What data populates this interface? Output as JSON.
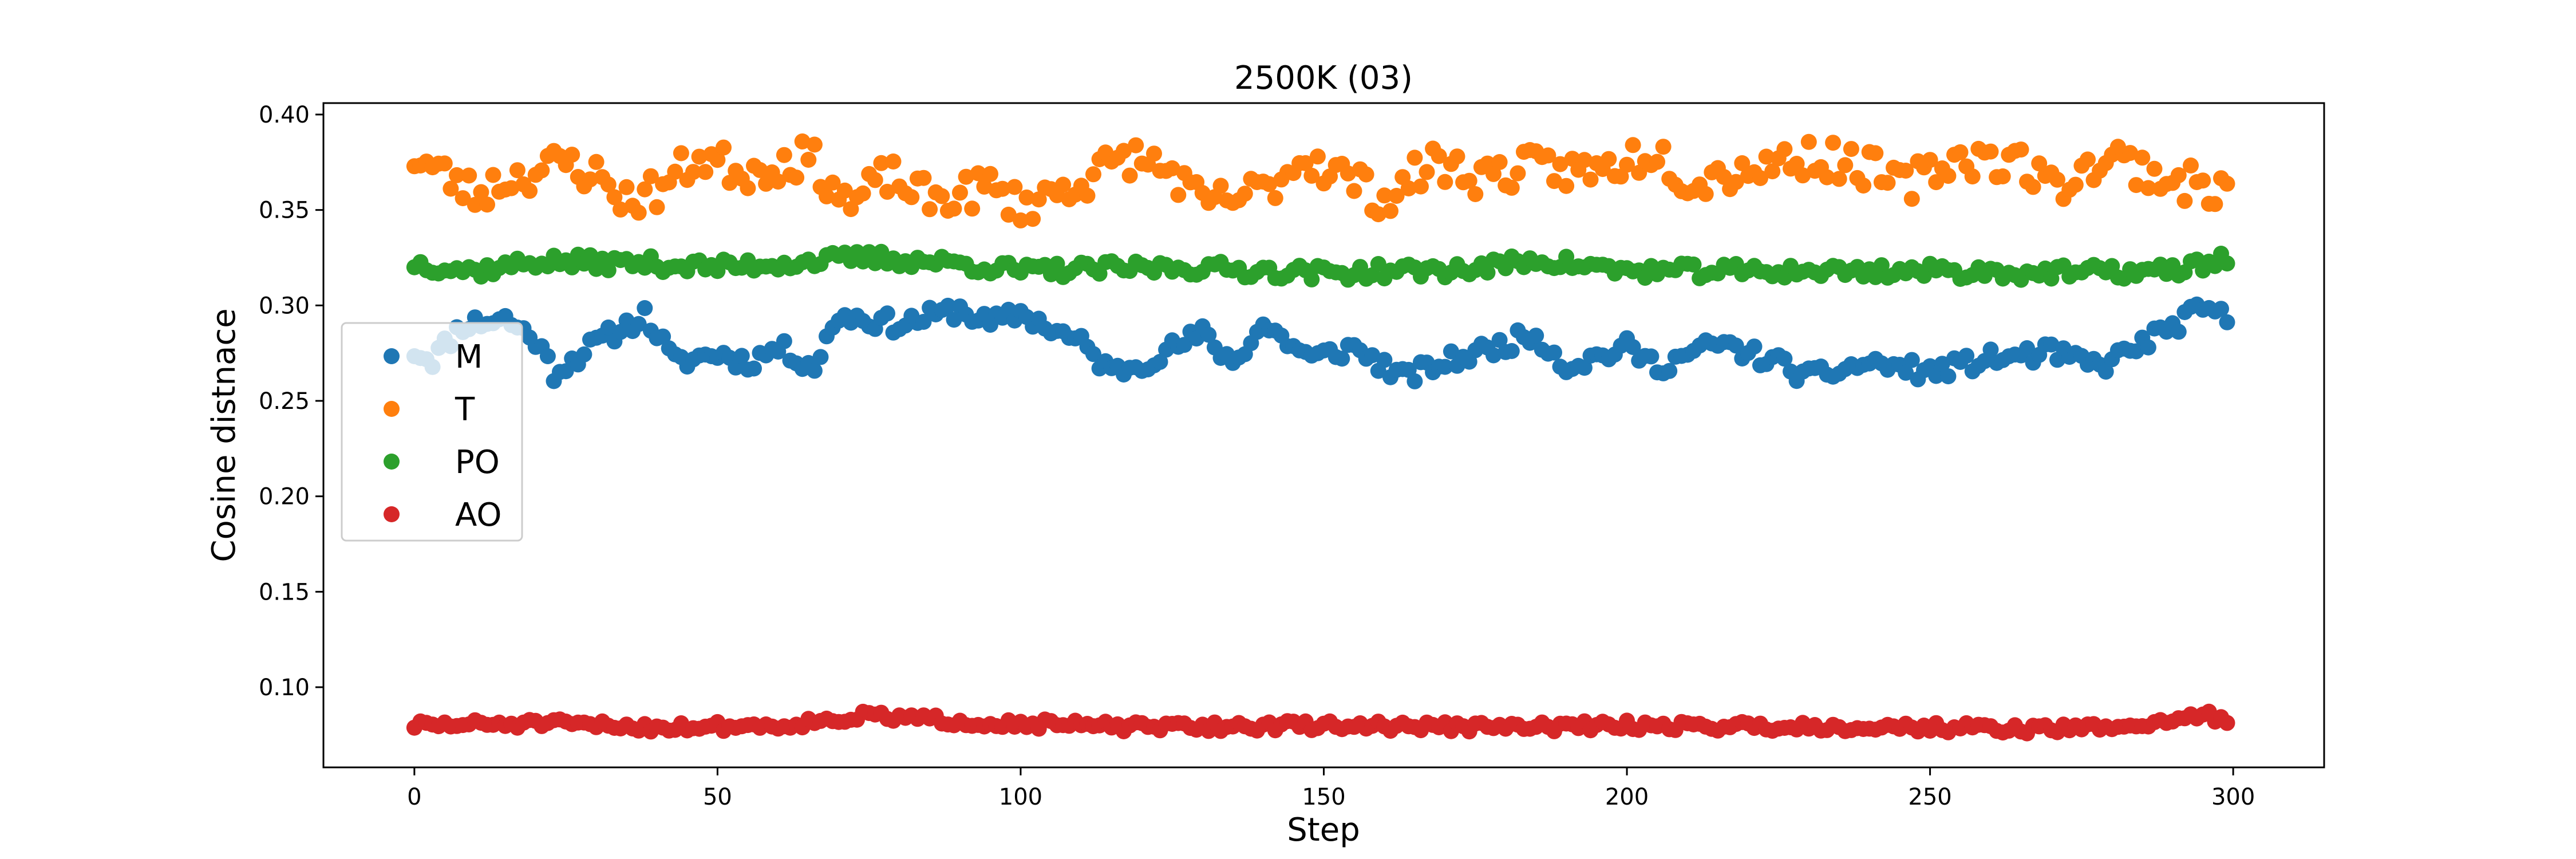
{
  "chart_data": {
    "type": "scatter",
    "title": "2500K (03)",
    "xlabel": "Step",
    "ylabel": "Cosine distnace",
    "xlim": [
      -15,
      315
    ],
    "ylim": [
      0.058,
      0.406
    ],
    "xticks": [
      0,
      50,
      100,
      150,
      200,
      250,
      300
    ],
    "yticks": [
      0.1,
      0.15,
      0.2,
      0.25,
      0.3,
      0.35,
      0.4
    ],
    "grid": false,
    "legend_position": "center-left",
    "x_range": [
      0,
      299
    ],
    "series": [
      {
        "name": "M",
        "color": "#1f77b4",
        "anchors": [
          [
            0,
            0.276
          ],
          [
            3,
            0.272
          ],
          [
            8,
            0.29
          ],
          [
            15,
            0.293
          ],
          [
            20,
            0.282
          ],
          [
            23,
            0.265
          ],
          [
            30,
            0.28
          ],
          [
            38,
            0.295
          ],
          [
            43,
            0.27
          ],
          [
            50,
            0.275
          ],
          [
            55,
            0.27
          ],
          [
            60,
            0.278
          ],
          [
            66,
            0.268
          ],
          [
            70,
            0.295
          ],
          [
            80,
            0.29
          ],
          [
            90,
            0.298
          ],
          [
            95,
            0.29
          ],
          [
            100,
            0.296
          ],
          [
            110,
            0.28
          ],
          [
            115,
            0.265
          ],
          [
            120,
            0.27
          ],
          [
            130,
            0.285
          ],
          [
            135,
            0.27
          ],
          [
            140,
            0.29
          ],
          [
            148,
            0.272
          ],
          [
            155,
            0.278
          ],
          [
            163,
            0.262
          ],
          [
            170,
            0.27
          ],
          [
            180,
            0.28
          ],
          [
            185,
            0.285
          ],
          [
            190,
            0.268
          ],
          [
            200,
            0.278
          ],
          [
            205,
            0.268
          ],
          [
            215,
            0.28
          ],
          [
            225,
            0.27
          ],
          [
            230,
            0.262
          ],
          [
            240,
            0.27
          ],
          [
            250,
            0.265
          ],
          [
            260,
            0.272
          ],
          [
            270,
            0.275
          ],
          [
            278,
            0.268
          ],
          [
            285,
            0.28
          ],
          [
            295,
            0.298
          ],
          [
            299,
            0.293
          ]
        ],
        "noise": 0.005,
        "seed": 11
      },
      {
        "name": "T",
        "color": "#ff7f0e",
        "anchors": [
          [
            0,
            0.378
          ],
          [
            5,
            0.368
          ],
          [
            10,
            0.358
          ],
          [
            15,
            0.366
          ],
          [
            20,
            0.37
          ],
          [
            25,
            0.375
          ],
          [
            30,
            0.368
          ],
          [
            35,
            0.355
          ],
          [
            40,
            0.36
          ],
          [
            47,
            0.378
          ],
          [
            55,
            0.37
          ],
          [
            65,
            0.378
          ],
          [
            72,
            0.352
          ],
          [
            78,
            0.368
          ],
          [
            85,
            0.355
          ],
          [
            95,
            0.362
          ],
          [
            100,
            0.352
          ],
          [
            110,
            0.365
          ],
          [
            118,
            0.378
          ],
          [
            125,
            0.37
          ],
          [
            130,
            0.352
          ],
          [
            140,
            0.36
          ],
          [
            147,
            0.378
          ],
          [
            155,
            0.365
          ],
          [
            160,
            0.355
          ],
          [
            168,
            0.375
          ],
          [
            175,
            0.368
          ],
          [
            185,
            0.372
          ],
          [
            195,
            0.37
          ],
          [
            205,
            0.382
          ],
          [
            210,
            0.365
          ],
          [
            220,
            0.372
          ],
          [
            230,
            0.378
          ],
          [
            240,
            0.372
          ],
          [
            245,
            0.362
          ],
          [
            255,
            0.378
          ],
          [
            265,
            0.375
          ],
          [
            270,
            0.362
          ],
          [
            280,
            0.378
          ],
          [
            290,
            0.365
          ],
          [
            299,
            0.36
          ]
        ],
        "noise": 0.01,
        "seed": 23
      },
      {
        "name": "PO",
        "color": "#2ca02c",
        "anchors": [
          [
            0,
            0.322
          ],
          [
            10,
            0.318
          ],
          [
            20,
            0.323
          ],
          [
            38,
            0.322
          ],
          [
            50,
            0.32
          ],
          [
            75,
            0.325
          ],
          [
            90,
            0.322
          ],
          [
            100,
            0.318
          ],
          [
            125,
            0.32
          ],
          [
            150,
            0.317
          ],
          [
            175,
            0.319
          ],
          [
            185,
            0.324
          ],
          [
            200,
            0.318
          ],
          [
            225,
            0.318
          ],
          [
            250,
            0.318
          ],
          [
            270,
            0.317
          ],
          [
            290,
            0.318
          ],
          [
            299,
            0.325
          ]
        ],
        "noise": 0.004,
        "seed": 37
      },
      {
        "name": "AO",
        "color": "#d62728",
        "anchors": [
          [
            0,
            0.08
          ],
          [
            20,
            0.081
          ],
          [
            40,
            0.079
          ],
          [
            60,
            0.08
          ],
          [
            75,
            0.085
          ],
          [
            90,
            0.082
          ],
          [
            100,
            0.081
          ],
          [
            120,
            0.079
          ],
          [
            150,
            0.08
          ],
          [
            180,
            0.079
          ],
          [
            200,
            0.08
          ],
          [
            250,
            0.079
          ],
          [
            270,
            0.078
          ],
          [
            285,
            0.08
          ],
          [
            295,
            0.086
          ],
          [
            299,
            0.081
          ]
        ],
        "noise": 0.0025,
        "seed": 51
      }
    ]
  }
}
